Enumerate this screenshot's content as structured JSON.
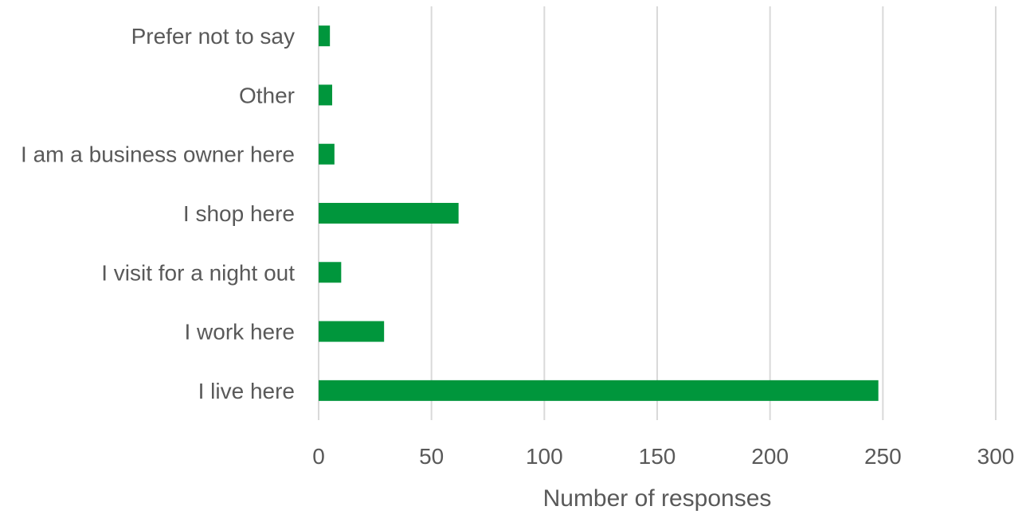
{
  "chart_data": {
    "type": "bar",
    "orientation": "horizontal",
    "categories": [
      "I live here",
      "I work here",
      "I visit for a night out",
      "I shop here",
      "I am a business owner here",
      "Other",
      "Prefer not to say"
    ],
    "values": [
      248,
      29,
      10,
      62,
      7,
      6,
      5
    ],
    "xlabel": "Number of responses",
    "ylabel": "",
    "xlim": [
      0,
      300
    ],
    "xticks": [
      0,
      50,
      100,
      150,
      200,
      250,
      300
    ],
    "tick_labels": [
      "0",
      "50",
      "100",
      "150",
      "200",
      "250",
      "300"
    ],
    "grid": "vertical",
    "legend": "none",
    "bar_color": "#00963c",
    "grid_color": "#d9d9d9",
    "text_color": "#595959"
  }
}
